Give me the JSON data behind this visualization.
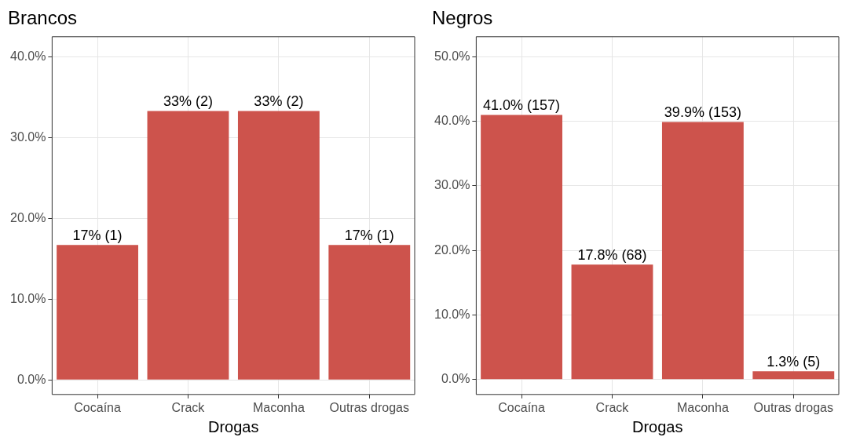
{
  "chart_data": [
    {
      "type": "bar",
      "title": "Brancos",
      "xlabel": "Drogas",
      "categories": [
        "Cocaína",
        "Crack",
        "Maconha",
        "Outras drogas"
      ],
      "values": [
        16.7,
        33.3,
        33.3,
        16.7
      ],
      "value_labels": [
        "17% (1)",
        "33% (2)",
        "33% (2)",
        "17% (1)"
      ],
      "color": "#cd534c",
      "ylim": [
        -1.8,
        42.5
      ],
      "yticks": [
        {
          "value": 0,
          "label": "0.0%"
        },
        {
          "value": 10,
          "label": "10.0%"
        },
        {
          "value": 20,
          "label": "20.0%"
        },
        {
          "value": 30,
          "label": "30.0%"
        },
        {
          "value": 40,
          "label": "40.0%"
        }
      ],
      "grid": true,
      "legend": false
    },
    {
      "type": "bar",
      "title": "Negros",
      "xlabel": "Drogas",
      "categories": [
        "Cocaína",
        "Crack",
        "Maconha",
        "Outras drogas"
      ],
      "values": [
        41.0,
        17.8,
        39.9,
        1.3
      ],
      "value_labels": [
        "41.0% (157)",
        "17.8% (68)",
        "39.9% (153)",
        "1.3% (5)"
      ],
      "color": "#cd534c",
      "ylim": [
        -2.3,
        53.1
      ],
      "yticks": [
        {
          "value": 0,
          "label": "0.0%"
        },
        {
          "value": 10,
          "label": "10.0%"
        },
        {
          "value": 20,
          "label": "20.0%"
        },
        {
          "value": 30,
          "label": "30.0%"
        },
        {
          "value": 40,
          "label": "40.0%"
        },
        {
          "value": 50,
          "label": "50.0%"
        }
      ],
      "grid": true,
      "legend": false
    }
  ]
}
